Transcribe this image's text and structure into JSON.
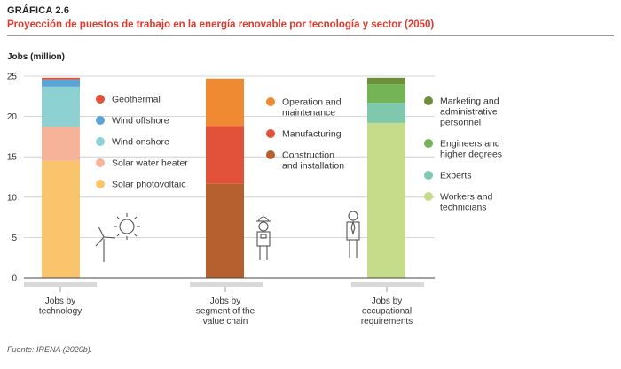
{
  "figure_label": "GRÁFICA 2.6",
  "title": "Proyección de puestos de trabajo en la energía renovable por tecnología y sector (2050)",
  "source": "Fuente: IRENA (2020b).",
  "chart_data": {
    "type": "bar",
    "stacked": true,
    "ylabel": "Jobs (million)",
    "ylim": [
      0,
      25
    ],
    "yticks": [
      0,
      5,
      10,
      15,
      20,
      25
    ],
    "grid": true,
    "bars": [
      {
        "label_lines": [
          "Jobs by",
          "technology"
        ],
        "segments": [
          {
            "name": "Solar photovoltaic",
            "value": 14.5,
            "color": "#f9c46b"
          },
          {
            "name": "Solar water heater",
            "value": 4.2,
            "color": "#f6b39a"
          },
          {
            "name": "Wind onshore",
            "value": 5.0,
            "color": "#8ed1d3"
          },
          {
            "name": "Wind offshore",
            "value": 0.9,
            "color": "#5aa4d8"
          },
          {
            "name": "Geothermal",
            "value": 0.2,
            "color": "#e2513a"
          }
        ],
        "legend_lines": [
          [
            "Geothermal"
          ],
          [
            "Wind offshore"
          ],
          [
            "Wind onshore"
          ],
          [
            "Solar water heater"
          ],
          [
            "Solar photovoltaic"
          ]
        ],
        "icon": "wind-sun-icon"
      },
      {
        "label_lines": [
          "Jobs by",
          "segment of the",
          "value chain"
        ],
        "segments": [
          {
            "name": "Construction and installation",
            "value": 11.7,
            "color": "#b5602e"
          },
          {
            "name": "Manufacturing",
            "value": 7.1,
            "color": "#e2513a"
          },
          {
            "name": "Operation and maintenance",
            "value": 5.9,
            "color": "#ef8a33"
          }
        ],
        "legend_lines": [
          [
            "Operation and",
            "maintenance"
          ],
          [
            "Manufacturing"
          ],
          [
            "Construction",
            "and installation"
          ]
        ],
        "icon": "worker-icon"
      },
      {
        "label_lines": [
          "Jobs by",
          "occupational",
          "requirements"
        ],
        "segments": [
          {
            "name": "Workers and technicians",
            "value": 19.2,
            "color": "#c6dc8b"
          },
          {
            "name": "Experts",
            "value": 2.5,
            "color": "#7fc8ae"
          },
          {
            "name": "Engineers and higher degrees",
            "value": 2.3,
            "color": "#74b456"
          },
          {
            "name": "Marketing and administrative personnel",
            "value": 0.8,
            "color": "#6e8f3a"
          }
        ],
        "legend_lines": [
          [
            "Marketing and",
            "administrative",
            "personnel"
          ],
          [
            "Engineers and",
            "higher degrees"
          ],
          [
            "Experts"
          ],
          [
            "Workers and",
            "technicians"
          ]
        ],
        "icon": "professional-icon"
      }
    ]
  }
}
